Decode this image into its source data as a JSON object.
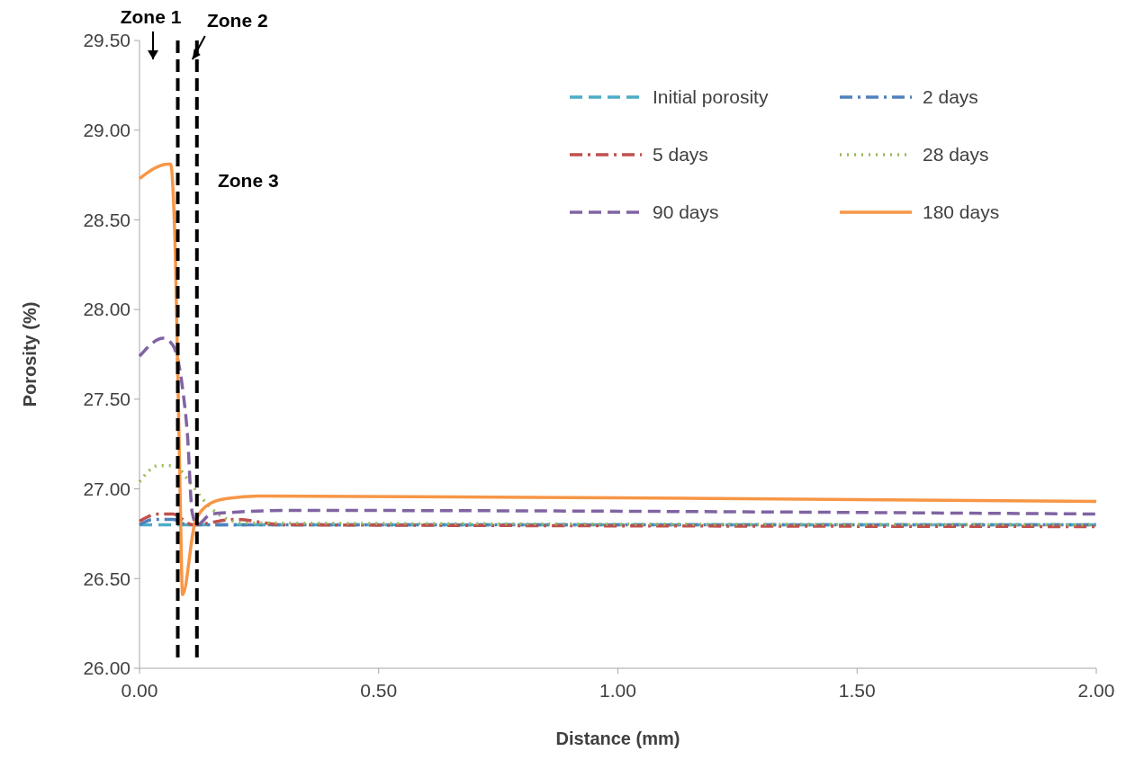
{
  "chart_data": {
    "type": "line",
    "xlabel": "Distance (mm)",
    "ylabel": "Porosity (%)",
    "xlim": [
      0,
      2
    ],
    "xticks": [
      {
        "value": 0,
        "label": "0.00"
      },
      {
        "value": 0.5,
        "label": "0.50"
      },
      {
        "value": 1,
        "label": "1.00"
      },
      {
        "value": 1.5,
        "label": "1.50"
      },
      {
        "value": 2,
        "label": "2.00"
      }
    ],
    "ylim": [
      26,
      29.5
    ],
    "yticks": [
      {
        "value": 26,
        "label": "26.00"
      },
      {
        "value": 26.5,
        "label": "26.50"
      },
      {
        "value": 27,
        "label": "27.00"
      },
      {
        "value": 27.5,
        "label": "27.50"
      },
      {
        "value": 28,
        "label": "28.00"
      },
      {
        "value": 28.5,
        "label": "28.50"
      },
      {
        "value": 29,
        "label": "29.00"
      },
      {
        "value": 29.5,
        "label": "29.50"
      }
    ],
    "grid": false,
    "legend": "top right",
    "series": [
      {
        "name": "Initial porosity",
        "color": "#4bacc6",
        "line_style": "dashed",
        "x": [
          0,
          2
        ],
        "values": [
          26.8,
          26.8
        ]
      },
      {
        "name": "2 days",
        "color": "#4f81bd",
        "line_style": "dashdot",
        "x": [
          0,
          0.03,
          0.07,
          0.1,
          2
        ],
        "values": [
          26.8,
          26.83,
          26.83,
          26.8,
          26.8
        ]
      },
      {
        "name": "5 days",
        "color": "#c0504d",
        "line_style": "dashdot",
        "x": [
          0,
          0.04,
          0.07,
          0.09,
          0.11,
          0.2,
          0.3,
          2
        ],
        "values": [
          26.82,
          26.86,
          26.86,
          26.83,
          26.8,
          26.83,
          26.8,
          26.79
        ]
      },
      {
        "name": "28 days",
        "color": "#9bbb59",
        "line_style": "dotted",
        "x": [
          0,
          0.04,
          0.07,
          0.11,
          0.13,
          0.17,
          0.22,
          2
        ],
        "values": [
          27.04,
          27.13,
          27.13,
          27.02,
          26.95,
          26.85,
          26.81,
          26.8
        ]
      },
      {
        "name": "90 days",
        "color": "#8064a2",
        "line_style": "dashed",
        "x": [
          0,
          0.05,
          0.07,
          0.09,
          0.1,
          0.11,
          0.12,
          0.15,
          0.2,
          0.3,
          2
        ],
        "values": [
          27.74,
          27.84,
          27.8,
          27.56,
          27.31,
          26.87,
          26.8,
          26.86,
          26.87,
          26.88,
          26.86
        ]
      },
      {
        "name": "180 days",
        "color": "#f79646",
        "line_style": "solid",
        "x": [
          0,
          0.06,
          0.065,
          0.075,
          0.085,
          0.09,
          0.115,
          0.13,
          0.17,
          0.25,
          1,
          2
        ],
        "values": [
          28.73,
          28.81,
          28.81,
          28.3,
          26.96,
          26.41,
          26.8,
          26.88,
          26.94,
          26.96,
          26.95,
          26.93
        ]
      }
    ],
    "ref_lines": [
      {
        "axis": "x",
        "value": 0.08,
        "color": "#000000",
        "line_style": "dashed"
      },
      {
        "axis": "x",
        "value": 0.12,
        "color": "#000000",
        "line_style": "dashed"
      }
    ],
    "annotations": [
      "Zone 1",
      "Zone 2",
      "Zone 3"
    ]
  }
}
